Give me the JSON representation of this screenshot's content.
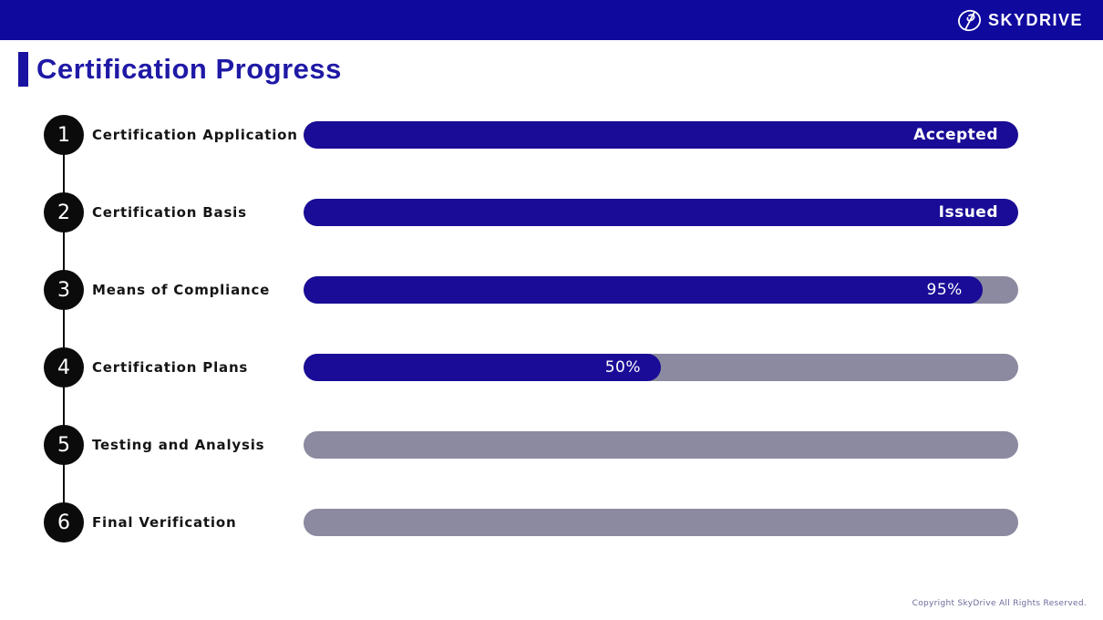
{
  "banner": {
    "logo_text": "SKYDRIVE",
    "logo_icon": "skydrive-mark",
    "background_color": "#10099E"
  },
  "page_title": "Certification Progress",
  "chart_data": {
    "type": "bar",
    "orientation": "horizontal",
    "title": "Certification Progress",
    "step_numbers": [
      "1",
      "2",
      "3",
      "4",
      "5",
      "6"
    ],
    "categories": [
      "Certification Application",
      "Certification Basis",
      "Means of Compliance",
      "Certification Plans",
      "Testing and Analysis",
      "Final Verification"
    ],
    "values": [
      100,
      100,
      95,
      50,
      0,
      0
    ],
    "bar_labels": [
      "Accepted",
      "Issued",
      "95%",
      "50%",
      "",
      ""
    ],
    "xlim": [
      0,
      100
    ],
    "bar_color": "#1A0C96",
    "track_color": "#8B8AA0",
    "legend": "none",
    "grid": "off"
  },
  "footer": {
    "copyright": "Copyright SkyDrive All Rights Reserved."
  }
}
